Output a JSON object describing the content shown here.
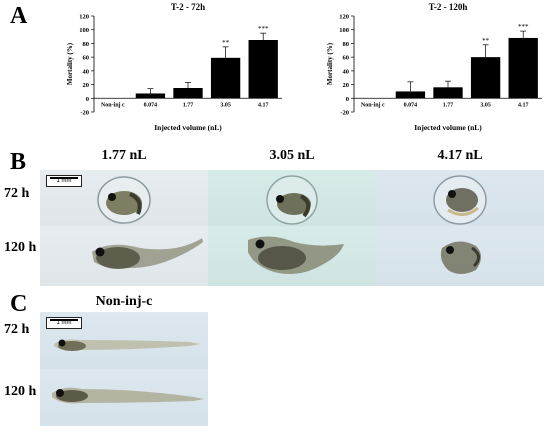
{
  "panels": {
    "a": "A",
    "b": "B",
    "c": "C"
  },
  "chart_data": [
    {
      "type": "bar",
      "title": "T-2 - 72h",
      "xlabel": "Injected volume (nL)",
      "ylabel": "Mortality (%)",
      "ylim": [
        -20,
        120
      ],
      "yticks": [
        -20,
        0,
        20,
        40,
        60,
        80,
        100,
        120
      ],
      "categories": [
        "Non-inj c",
        "0.074",
        "1.77",
        "3.05",
        "4.17"
      ],
      "values": [
        0,
        7,
        15,
        59,
        85
      ],
      "errors": [
        0,
        7,
        8,
        16,
        10
      ],
      "annotations": [
        "",
        "",
        "",
        "**",
        "***"
      ]
    },
    {
      "type": "bar",
      "title": "T-2 - 120h",
      "xlabel": "Injected volume (nL)",
      "ylabel": "Mortality (%)",
      "ylim": [
        -20,
        120
      ],
      "yticks": [
        -20,
        0,
        20,
        40,
        60,
        80,
        100,
        120
      ],
      "categories": [
        "Non-inj c",
        "0.074",
        "1.77",
        "3.05",
        "4.17"
      ],
      "values": [
        0,
        10,
        16,
        60,
        88
      ],
      "errors": [
        0,
        14,
        9,
        18,
        10
      ],
      "annotations": [
        "",
        "",
        "",
        "**",
        "***"
      ]
    }
  ],
  "panel_b": {
    "columns": [
      "1.77 nL",
      "3.05 nL",
      "4.17 nL"
    ],
    "rows": [
      "72 h",
      "120 h"
    ],
    "scale_label": "1 mm"
  },
  "panel_c": {
    "title": "Non-inj-c",
    "rows": [
      "72 h",
      "120 h"
    ],
    "scale_label": "1 mm"
  }
}
